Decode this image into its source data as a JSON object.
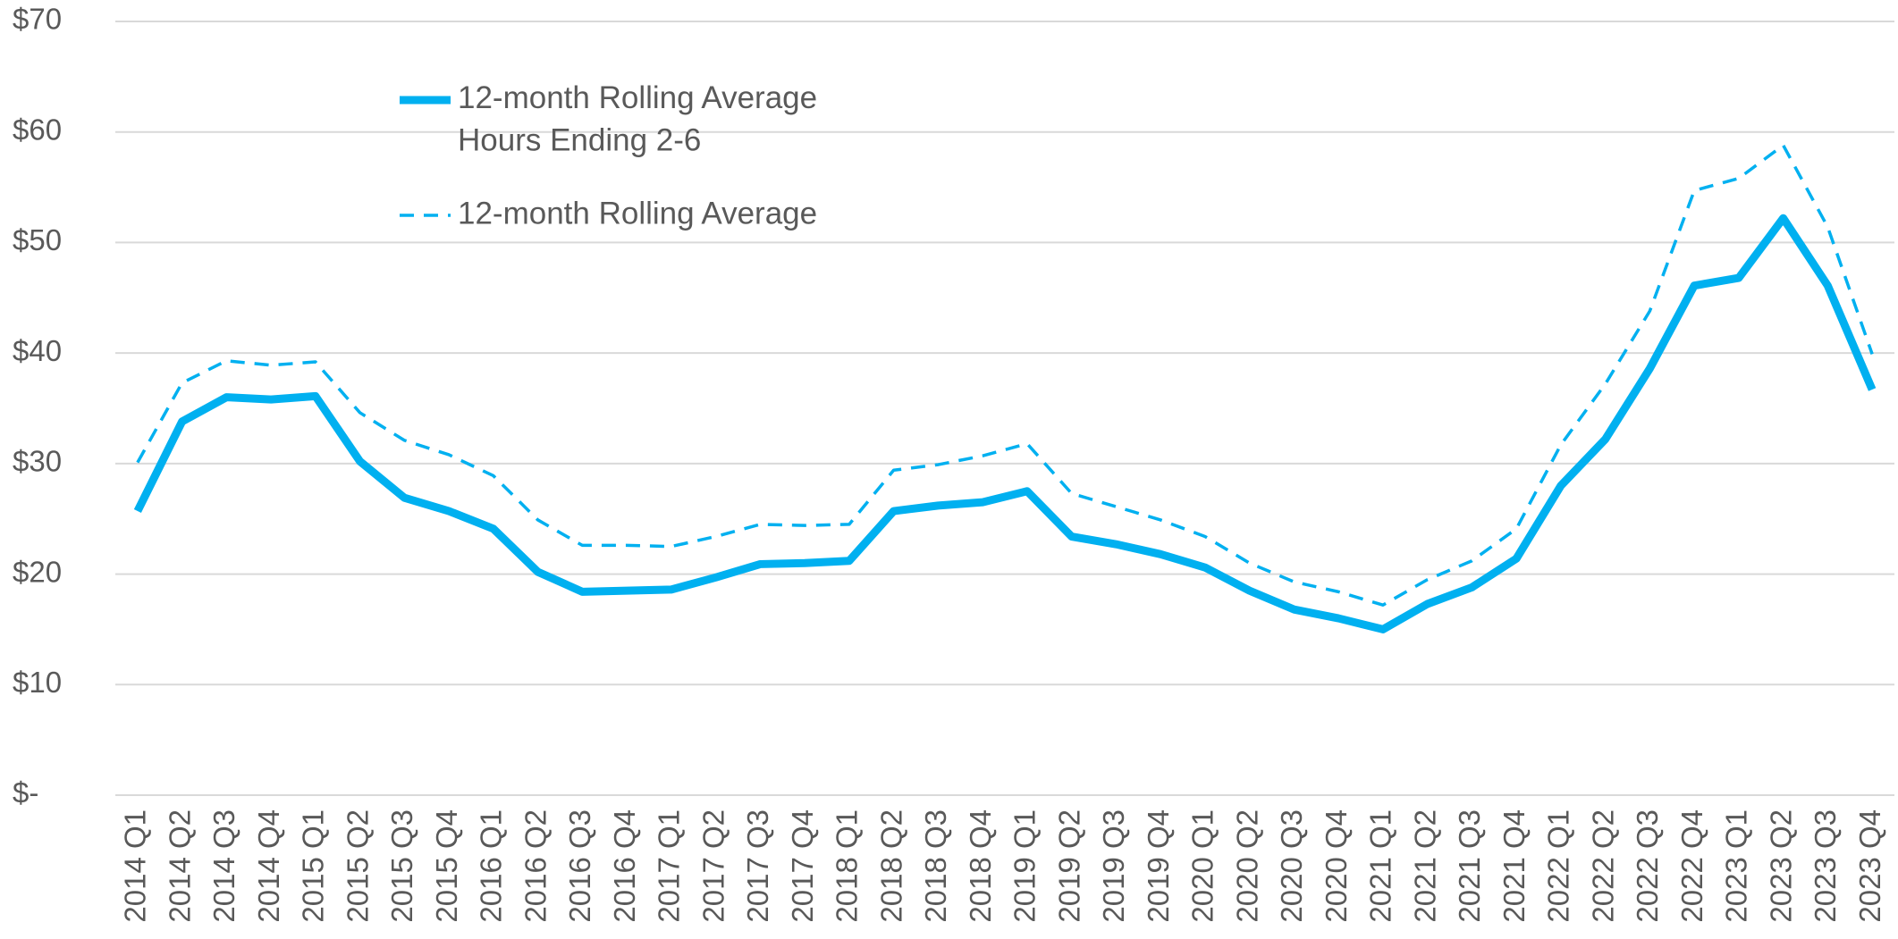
{
  "chart_data": {
    "type": "line",
    "categories": [
      "2014 Q1",
      "2014 Q2",
      "2014 Q3",
      "2014 Q4",
      "2015 Q1",
      "2015 Q2",
      "2015 Q3",
      "2015 Q4",
      "2016 Q1",
      "2016 Q2",
      "2016 Q3",
      "2016 Q4",
      "2017 Q1",
      "2017 Q2",
      "2017 Q3",
      "2017 Q4",
      "2018 Q1",
      "2018 Q2",
      "2018 Q3",
      "2018 Q4",
      "2019 Q1",
      "2019 Q2",
      "2019 Q3",
      "2019 Q4",
      "2020 Q1",
      "2020 Q2",
      "2020 Q3",
      "2020 Q4",
      "2021 Q1",
      "2021 Q2",
      "2021 Q3",
      "2021 Q4",
      "2022 Q1",
      "2022 Q2",
      "2022 Q3",
      "2022 Q4",
      "2023 Q1",
      "2023 Q2",
      "2023 Q3",
      "2023 Q4"
    ],
    "series": [
      {
        "name": "12-month Rolling Average\nHours Ending 2-6",
        "color": "#00b0f0",
        "style": "solid",
        "values": [
          25.7,
          33.8,
          36.0,
          35.8,
          36.1,
          30.2,
          26.9,
          25.7,
          24.1,
          20.2,
          18.4,
          18.5,
          18.6,
          19.7,
          20.9,
          21.0,
          21.2,
          25.7,
          26.2,
          26.5,
          27.5,
          23.4,
          22.7,
          21.8,
          20.6,
          18.5,
          16.8,
          16.0,
          15.0,
          17.3,
          18.8,
          21.4,
          28.0,
          32.2,
          38.6,
          46.1,
          46.8,
          52.2,
          46.1,
          36.7
        ]
      },
      {
        "name": "12-month Rolling Average",
        "color": "#00b0f0",
        "style": "dashed",
        "values": [
          30.1,
          37.3,
          39.3,
          38.9,
          39.2,
          34.6,
          32.1,
          30.8,
          28.9,
          24.9,
          22.6,
          22.6,
          22.5,
          23.4,
          24.5,
          24.4,
          24.5,
          29.4,
          29.9,
          30.7,
          31.8,
          27.3,
          26.1,
          24.9,
          23.4,
          21.0,
          19.3,
          18.4,
          17.2,
          19.5,
          21.2,
          24.1,
          31.7,
          37.2,
          43.8,
          54.7,
          55.8,
          58.8,
          51.4,
          39.9
        ]
      }
    ],
    "ylim": [
      0,
      70
    ],
    "yticks": [
      {
        "value": 0,
        "label": "$-"
      },
      {
        "value": 10,
        "label": "$10"
      },
      {
        "value": 20,
        "label": "$20"
      },
      {
        "value": 30,
        "label": "$30"
      },
      {
        "value": 40,
        "label": "$40"
      },
      {
        "value": 50,
        "label": "$50"
      },
      {
        "value": 60,
        "label": "$60"
      },
      {
        "value": 70,
        "label": "$70"
      }
    ],
    "grid": true,
    "legend": "upper left"
  }
}
